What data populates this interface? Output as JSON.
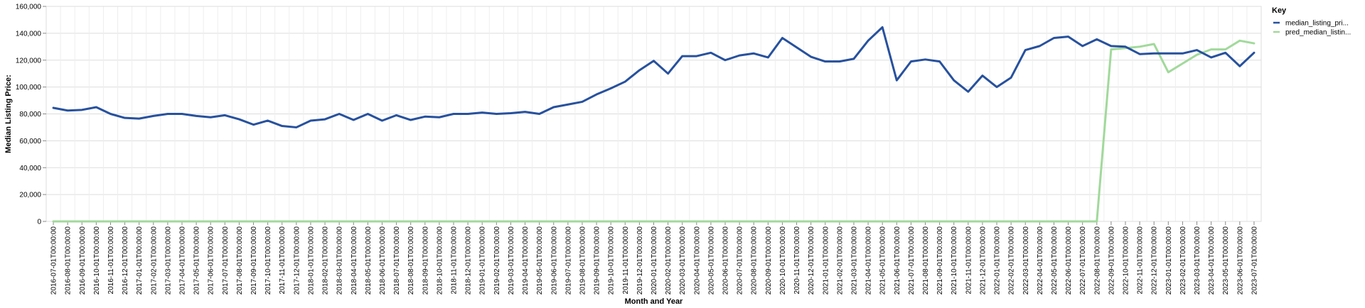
{
  "chart_data": {
    "type": "line",
    "xlabel": "Month and Year",
    "ylabel": "Median Listing Price:",
    "ylim": [
      0,
      160000
    ],
    "yticks": [
      0,
      20000,
      40000,
      60000,
      80000,
      100000,
      120000,
      140000,
      160000
    ],
    "ytick_labels": [
      "0",
      "20,000",
      "40,000",
      "60,000",
      "80,000",
      "100,000",
      "120,000",
      "140,000",
      "160,000"
    ],
    "grid": true,
    "legend": {
      "title": "Key",
      "placement": "top-right"
    },
    "x": [
      "2016-07-01T00:00:00",
      "2016-08-01T00:00:00",
      "2016-09-01T00:00:00",
      "2016-10-01T00:00:00",
      "2016-11-01T00:00:00",
      "2016-12-01T00:00:00",
      "2017-01-01T00:00:00",
      "2017-02-01T00:00:00",
      "2017-03-01T00:00:00",
      "2017-04-01T00:00:00",
      "2017-05-01T00:00:00",
      "2017-06-01T00:00:00",
      "2017-07-01T00:00:00",
      "2017-08-01T00:00:00",
      "2017-09-01T00:00:00",
      "2017-10-01T00:00:00",
      "2017-11-01T00:00:00",
      "2017-12-01T00:00:00",
      "2018-01-01T00:00:00",
      "2018-02-01T00:00:00",
      "2018-03-01T00:00:00",
      "2018-04-01T00:00:00",
      "2018-05-01T00:00:00",
      "2018-06-01T00:00:00",
      "2018-07-01T00:00:00",
      "2018-08-01T00:00:00",
      "2018-09-01T00:00:00",
      "2018-10-01T00:00:00",
      "2018-11-01T00:00:00",
      "2018-12-01T00:00:00",
      "2019-01-01T00:00:00",
      "2019-02-01T00:00:00",
      "2019-03-01T00:00:00",
      "2019-04-01T00:00:00",
      "2019-05-01T00:00:00",
      "2019-06-01T00:00:00",
      "2019-07-01T00:00:00",
      "2019-08-01T00:00:00",
      "2019-09-01T00:00:00",
      "2019-10-01T00:00:00",
      "2019-11-01T00:00:00",
      "2019-12-01T00:00:00",
      "2020-01-01T00:00:00",
      "2020-02-01T00:00:00",
      "2020-03-01T00:00:00",
      "2020-04-01T00:00:00",
      "2020-05-01T00:00:00",
      "2020-06-01T00:00:00",
      "2020-07-01T00:00:00",
      "2020-08-01T00:00:00",
      "2020-09-01T00:00:00",
      "2020-10-01T00:00:00",
      "2020-11-01T00:00:00",
      "2020-12-01T00:00:00",
      "2021-01-01T00:00:00",
      "2021-02-01T00:00:00",
      "2021-03-01T00:00:00",
      "2021-04-01T00:00:00",
      "2021-05-01T00:00:00",
      "2021-06-01T00:00:00",
      "2021-07-01T00:00:00",
      "2021-08-01T00:00:00",
      "2021-09-01T00:00:00",
      "2021-10-01T00:00:00",
      "2021-11-01T00:00:00",
      "2021-12-01T00:00:00",
      "2022-01-01T00:00:00",
      "2022-02-01T00:00:00",
      "2022-03-01T00:00:00",
      "2022-04-01T00:00:00",
      "2022-05-01T00:00:00",
      "2022-06-01T00:00:00",
      "2022-07-01T00:00:00",
      "2022-08-01T00:00:00",
      "2022-09-01T00:00:00",
      "2022-10-01T00:00:00",
      "2022-11-01T00:00:00",
      "2022-12-01T00:00:00",
      "2023-01-01T00:00:00",
      "2023-02-01T00:00:00",
      "2023-03-01T00:00:00",
      "2023-04-01T00:00:00",
      "2023-05-01T00:00:00",
      "2023-06-01T00:00:00",
      "2023-07-01T00:00:00"
    ],
    "series": [
      {
        "name": "median_listing_pri...",
        "color": "#27519e",
        "values": [
          84500,
          82500,
          83000,
          85000,
          80000,
          77000,
          76500,
          78500,
          80000,
          80000,
          78500,
          77500,
          79000,
          76000,
          72000,
          75000,
          71000,
          70000,
          75000,
          76000,
          80000,
          75500,
          80000,
          75000,
          79000,
          75500,
          78000,
          77500,
          80000,
          80000,
          81000,
          80000,
          80500,
          81500,
          80000,
          85000,
          87000,
          89000,
          94500,
          99000,
          104000,
          112500,
          119500,
          110000,
          123000,
          123000,
          125500,
          120000,
          123500,
          125000,
          122000,
          136500,
          129500,
          122500,
          119000,
          119000,
          121000,
          134500,
          144500,
          105000,
          119000,
          120500,
          119000,
          105000,
          96500,
          108500,
          100000,
          107000,
          127500,
          130500,
          136500,
          137500,
          130500,
          135500,
          130500,
          130000,
          124500,
          125000,
          125000,
          125000,
          127500,
          122000,
          125500,
          115500,
          125500
        ]
      },
      {
        "name": "pred_median_listin...",
        "color": "#a1d99b",
        "values": [
          0,
          0,
          0,
          0,
          0,
          0,
          0,
          0,
          0,
          0,
          0,
          0,
          0,
          0,
          0,
          0,
          0,
          0,
          0,
          0,
          0,
          0,
          0,
          0,
          0,
          0,
          0,
          0,
          0,
          0,
          0,
          0,
          0,
          0,
          0,
          0,
          0,
          0,
          0,
          0,
          0,
          0,
          0,
          0,
          0,
          0,
          0,
          0,
          0,
          0,
          0,
          0,
          0,
          0,
          0,
          0,
          0,
          0,
          0,
          0,
          0,
          0,
          0,
          0,
          0,
          0,
          0,
          0,
          0,
          0,
          0,
          0,
          0,
          0,
          128000,
          129000,
          130000,
          132000,
          111000,
          117500,
          124000,
          128000,
          128000,
          134500,
          132500
        ]
      }
    ]
  }
}
